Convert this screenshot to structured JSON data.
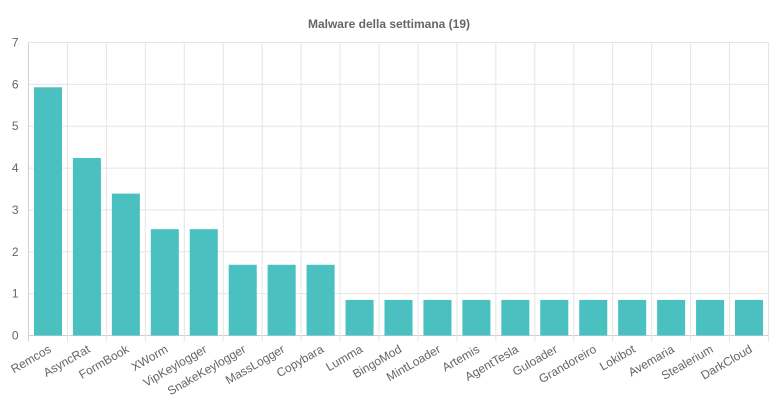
{
  "chart_data": {
    "type": "bar",
    "title": "Malware della settimana (19)",
    "xlabel": "",
    "ylabel": "",
    "ylim": [
      0,
      7
    ],
    "yticks": [
      0,
      1,
      2,
      3,
      4,
      5,
      6,
      7
    ],
    "grid": true,
    "legend": "none",
    "bar_color": "#4bc0c0",
    "categories": [
      "Remcos",
      "AsyncRat",
      "FormBook",
      "XWorm",
      "VipKeylogger",
      "SnakeKeylogger",
      "MassLogger",
      "Copybara",
      "Lumma",
      "BingoMod",
      "MintLoader",
      "Artemis",
      "AgentTesla",
      "Guloader",
      "Grandoreiro",
      "Lokibot",
      "Avemaria",
      "Stealerium",
      "DarkCloud"
    ],
    "values": [
      5.93,
      4.24,
      3.39,
      2.54,
      2.54,
      1.69,
      1.69,
      1.69,
      0.85,
      0.85,
      0.85,
      0.85,
      0.85,
      0.85,
      0.85,
      0.85,
      0.85,
      0.85,
      0.85
    ]
  }
}
